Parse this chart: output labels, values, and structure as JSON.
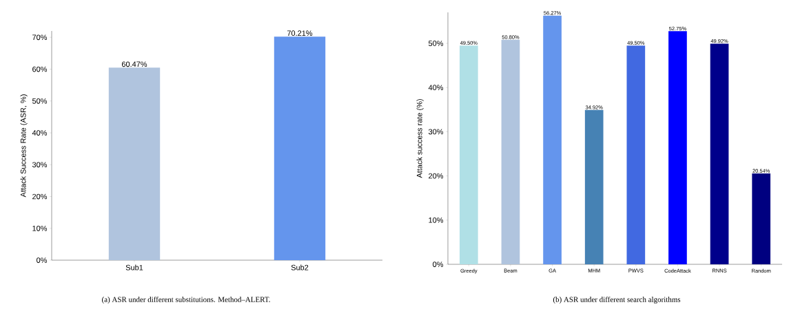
{
  "chart_data": [
    {
      "type": "bar",
      "title": "(a)  ASR under different substitutions. Method–ALERT.",
      "ylabel": "Attack Success Rate (ASR, %)",
      "categories": [
        "Sub1",
        "Sub2"
      ],
      "values": [
        60.47,
        70.21
      ],
      "colors": [
        "#b0c4de",
        "#6495ed"
      ],
      "value_labels": [
        "60.47%",
        "70.21%"
      ],
      "ylim": [
        0,
        72
      ],
      "yticks": [
        {
          "value": 0,
          "label": "0%"
        },
        {
          "value": 10,
          "label": "10%"
        },
        {
          "value": 20,
          "label": "20%"
        },
        {
          "value": 30,
          "label": "30%"
        },
        {
          "value": 40,
          "label": "40%"
        },
        {
          "value": 50,
          "label": "50%"
        },
        {
          "value": 60,
          "label": "60%"
        },
        {
          "value": 70,
          "label": "70%"
        }
      ]
    },
    {
      "type": "bar",
      "title": "(b)  ASR under different search algorithms",
      "ylabel": "Attack success rate (%)",
      "categories": [
        "Greedy",
        "Beam",
        "GA",
        "MHM",
        "PWVS",
        "CodeAttack",
        "RNNS",
        "Random"
      ],
      "values": [
        49.5,
        50.8,
        56.27,
        34.92,
        49.5,
        52.75,
        49.92,
        20.54
      ],
      "colors": [
        "#b0e0e6",
        "#b0c4de",
        "#6495ed",
        "#4682b4",
        "#4169e1",
        "#0000ff",
        "#00008b",
        "#000080"
      ],
      "value_labels": [
        "49.50%",
        "50.80%",
        "56.27%",
        "34.92%",
        "49.50%",
        "52.75%",
        "49.92%",
        "20.54%"
      ],
      "ylim": [
        0,
        57
      ],
      "yticks": [
        {
          "value": 0,
          "label": "0%"
        },
        {
          "value": 10,
          "label": "10%"
        },
        {
          "value": 20,
          "label": "20%"
        },
        {
          "value": 30,
          "label": "30%"
        },
        {
          "value": 40,
          "label": "40%"
        },
        {
          "value": 50,
          "label": "50%"
        }
      ]
    }
  ]
}
